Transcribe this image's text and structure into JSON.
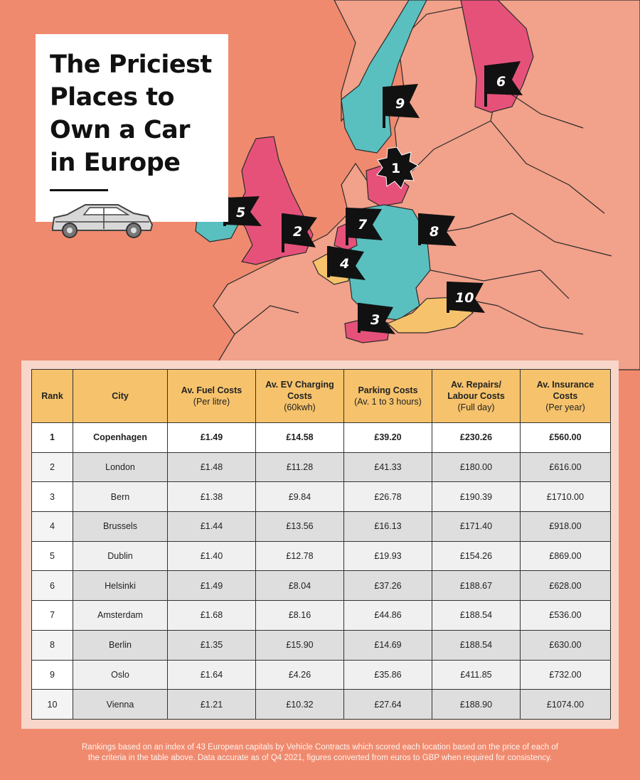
{
  "title": {
    "lines": [
      "The Priciest",
      "Places to",
      "Own a Car",
      "in Europe"
    ]
  },
  "icons": {
    "car": "car-icon",
    "flag": "flag-icon",
    "starburst": "starburst-badge-icon"
  },
  "colors": {
    "background": "#F08A6E",
    "land": "#F2A18A",
    "teal": "#5ABFBF",
    "pink": "#E6517A",
    "yellow": "#F6C36C",
    "header": "#F6C36C"
  },
  "map_flags": [
    "1",
    "2",
    "3",
    "4",
    "5",
    "6",
    "7",
    "8",
    "9",
    "10"
  ],
  "table": {
    "headers": [
      {
        "main": "Rank",
        "sub": ""
      },
      {
        "main": "City",
        "sub": ""
      },
      {
        "main": "Av. Fuel Costs",
        "sub": "(Per litre)"
      },
      {
        "main": "Av. EV Charging Costs",
        "sub": "(60kwh)"
      },
      {
        "main": "Parking Costs",
        "sub": "(Av. 1 to 3 hours)"
      },
      {
        "main": "Av. Repairs/ Labour Costs",
        "sub": "(Full day)"
      },
      {
        "main": "Av. Insurance Costs",
        "sub": "(Per year)"
      }
    ],
    "rows": [
      [
        "1",
        "Copenhagen",
        "£1.49",
        "£14.58",
        "£39.20",
        "£230.26",
        "£560.00"
      ],
      [
        "2",
        "London",
        "£1.48",
        "£11.28",
        "£41.33",
        "£180.00",
        "£616.00"
      ],
      [
        "3",
        "Bern",
        "£1.38",
        "£9.84",
        "£26.78",
        "£190.39",
        "£1710.00"
      ],
      [
        "4",
        "Brussels",
        "£1.44",
        "£13.56",
        "£16.13",
        "£171.40",
        "£918.00"
      ],
      [
        "5",
        "Dublin",
        "£1.40",
        "£12.78",
        "£19.93",
        "£154.26",
        "£869.00"
      ],
      [
        "6",
        "Helsinki",
        "£1.49",
        "£8.04",
        "£37.26",
        "£188.67",
        "£628.00"
      ],
      [
        "7",
        "Amsterdam",
        "£1.68",
        "£8.16",
        "£44.86",
        "£188.54",
        "£536.00"
      ],
      [
        "8",
        "Berlin",
        "£1.35",
        "£15.90",
        "£14.69",
        "£188.54",
        "£630.00"
      ],
      [
        "9",
        "Oslo",
        "£1.64",
        "£4.26",
        "£35.86",
        "£411.85",
        "£732.00"
      ],
      [
        "10",
        "Vienna",
        "£1.21",
        "£10.32",
        "£27.64",
        "£188.90",
        "£1074.00"
      ]
    ]
  },
  "footnote": {
    "line1": "Rankings based on an index of 43 European capitals by Vehicle Contracts which scored each location based on the price of each of",
    "line2": "the criteria in the table above. Data accurate as of Q4 2021, figures converted from euros to GBP when required for consistency."
  }
}
